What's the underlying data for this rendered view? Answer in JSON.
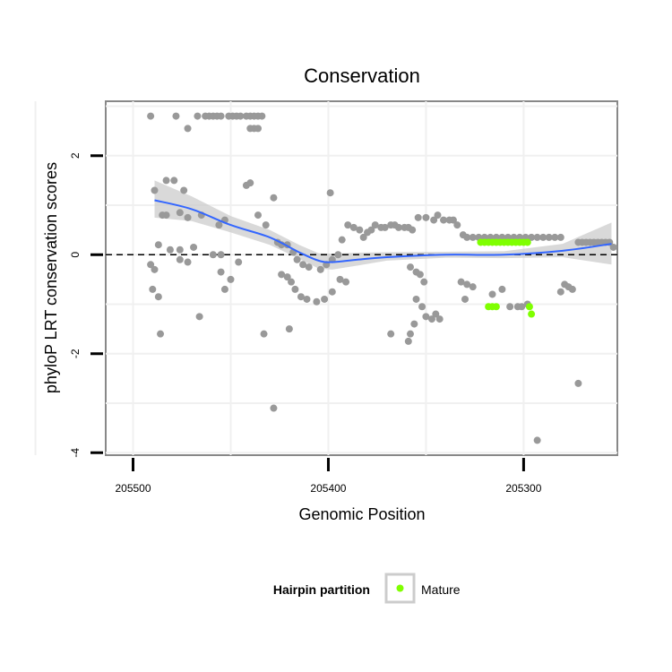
{
  "chart_data": {
    "type": "scatter",
    "title": "Conservation",
    "xlabel": "Genomic Position",
    "ylabel": "phyloP LRT conservation scores",
    "x_reversed": true,
    "xlim": [
      205252,
      205514
    ],
    "ylim": [
      -4.05,
      3.1
    ],
    "x_ticks": [
      205500,
      205400,
      205300
    ],
    "y_ticks": [
      2,
      0,
      -2,
      -4
    ],
    "reference_line_y": 0,
    "grid": true,
    "legend": {
      "title": "Hairpin partition",
      "placement": "bottom",
      "entries": [
        {
          "label": "Mature",
          "color": "#7fff00"
        }
      ]
    },
    "colors": {
      "points": "#999999",
      "mature": "#7fff00",
      "smooth": "#3366ff",
      "ribbon": "#cccccc"
    },
    "series": [
      {
        "role": "other",
        "points": [
          [
            205491,
            2.8
          ],
          [
            205478,
            2.8
          ],
          [
            205467,
            2.8
          ],
          [
            205463,
            2.8
          ],
          [
            205461,
            2.8
          ],
          [
            205459,
            2.8
          ],
          [
            205457,
            2.8
          ],
          [
            205455,
            2.8
          ],
          [
            205451,
            2.8
          ],
          [
            205449,
            2.8
          ],
          [
            205447,
            2.8
          ],
          [
            205445,
            2.8
          ],
          [
            205442,
            2.8
          ],
          [
            205440,
            2.8
          ],
          [
            205438,
            2.8
          ],
          [
            205436,
            2.8
          ],
          [
            205434,
            2.8
          ],
          [
            205472,
            2.55
          ],
          [
            205440,
            2.55
          ],
          [
            205438,
            2.55
          ],
          [
            205436,
            2.55
          ],
          [
            205489,
            1.3
          ],
          [
            205483,
            1.5
          ],
          [
            205479,
            1.5
          ],
          [
            205474,
            1.3
          ],
          [
            205440,
            1.45
          ],
          [
            205442,
            1.4
          ],
          [
            205428,
            1.15
          ],
          [
            205399,
            1.25
          ],
          [
            205485,
            0.8
          ],
          [
            205483,
            0.8
          ],
          [
            205476,
            0.85
          ],
          [
            205472,
            0.75
          ],
          [
            205465,
            0.8
          ],
          [
            205456,
            0.6
          ],
          [
            205453,
            0.7
          ],
          [
            205436,
            0.8
          ],
          [
            205432,
            0.6
          ],
          [
            205487,
            0.2
          ],
          [
            205481,
            0.1
          ],
          [
            205476,
            0.1
          ],
          [
            205469,
            0.15
          ],
          [
            205459,
            0.0
          ],
          [
            205455,
            0.0
          ],
          [
            205491,
            -0.2
          ],
          [
            205489,
            -0.3
          ],
          [
            205476,
            -0.1
          ],
          [
            205472,
            -0.15
          ],
          [
            205455,
            -0.35
          ],
          [
            205450,
            -0.5
          ],
          [
            205446,
            -0.15
          ],
          [
            205490,
            -0.7
          ],
          [
            205487,
            -0.85
          ],
          [
            205453,
            -0.7
          ],
          [
            205466,
            -1.25
          ],
          [
            205486,
            -1.6
          ],
          [
            205426,
            0.25
          ],
          [
            205424,
            0.2
          ],
          [
            205421,
            0.2
          ],
          [
            205418,
            0.05
          ],
          [
            205416,
            -0.1
          ],
          [
            205413,
            -0.2
          ],
          [
            205410,
            -0.25
          ],
          [
            205404,
            -0.3
          ],
          [
            205401,
            -0.2
          ],
          [
            205398,
            -0.1
          ],
          [
            205395,
            0.0
          ],
          [
            205393,
            0.3
          ],
          [
            205390,
            0.6
          ],
          [
            205387,
            0.55
          ],
          [
            205384,
            0.5
          ],
          [
            205382,
            0.35
          ],
          [
            205380,
            0.45
          ],
          [
            205378,
            0.5
          ],
          [
            205376,
            0.6
          ],
          [
            205373,
            0.55
          ],
          [
            205371,
            0.55
          ],
          [
            205368,
            0.6
          ],
          [
            205366,
            0.6
          ],
          [
            205364,
            0.55
          ],
          [
            205361,
            0.55
          ],
          [
            205359,
            0.55
          ],
          [
            205357,
            0.5
          ],
          [
            205424,
            -0.4
          ],
          [
            205421,
            -0.45
          ],
          [
            205419,
            -0.55
          ],
          [
            205417,
            -0.7
          ],
          [
            205414,
            -0.85
          ],
          [
            205411,
            -0.9
          ],
          [
            205406,
            -0.95
          ],
          [
            205402,
            -0.9
          ],
          [
            205398,
            -0.75
          ],
          [
            205394,
            -0.5
          ],
          [
            205391,
            -0.55
          ],
          [
            205433,
            -1.6
          ],
          [
            205420,
            -1.5
          ],
          [
            205428,
            -3.1
          ],
          [
            205354,
            0.75
          ],
          [
            205350,
            0.75
          ],
          [
            205346,
            0.7
          ],
          [
            205344,
            0.8
          ],
          [
            205341,
            0.7
          ],
          [
            205338,
            0.7
          ],
          [
            205336,
            0.7
          ],
          [
            205334,
            0.6
          ],
          [
            205331,
            0.4
          ],
          [
            205329,
            0.35
          ],
          [
            205326,
            0.35
          ],
          [
            205323,
            0.35
          ],
          [
            205320,
            0.35
          ],
          [
            205317,
            0.35
          ],
          [
            205314,
            0.35
          ],
          [
            205311,
            0.35
          ],
          [
            205308,
            0.35
          ],
          [
            205305,
            0.35
          ],
          [
            205302,
            0.35
          ],
          [
            205299,
            0.35
          ],
          [
            205296,
            0.35
          ],
          [
            205293,
            0.35
          ],
          [
            205290,
            0.35
          ],
          [
            205287,
            0.35
          ],
          [
            205284,
            0.35
          ],
          [
            205281,
            0.35
          ],
          [
            205355,
            -0.35
          ],
          [
            205353,
            -0.4
          ],
          [
            205351,
            -0.55
          ],
          [
            205358,
            -0.25
          ],
          [
            205355,
            -0.9
          ],
          [
            205352,
            -1.05
          ],
          [
            205350,
            -1.25
          ],
          [
            205347,
            -1.3
          ],
          [
            205345,
            -1.2
          ],
          [
            205356,
            -1.4
          ],
          [
            205343,
            -1.3
          ],
          [
            205358,
            -1.6
          ],
          [
            205359,
            -1.75
          ],
          [
            205368,
            -1.6
          ],
          [
            205332,
            -0.55
          ],
          [
            205329,
            -0.6
          ],
          [
            205326,
            -0.65
          ],
          [
            205316,
            -0.8
          ],
          [
            205311,
            -0.7
          ],
          [
            205330,
            -0.9
          ],
          [
            205281,
            -0.75
          ],
          [
            205279,
            -0.6
          ],
          [
            205277,
            -0.65
          ],
          [
            205275,
            -0.7
          ],
          [
            205272,
            -2.6
          ],
          [
            205293,
            -3.75
          ],
          [
            205272,
            0.25
          ],
          [
            205270,
            0.25
          ],
          [
            205268,
            0.25
          ],
          [
            205266,
            0.25
          ],
          [
            205264,
            0.25
          ],
          [
            205262,
            0.25
          ],
          [
            205260,
            0.25
          ],
          [
            205258,
            0.25
          ],
          [
            205256,
            0.25
          ],
          [
            205254,
            0.15
          ],
          [
            205298,
            -1.0
          ],
          [
            205303,
            -1.05
          ],
          [
            205307,
            -1.05
          ],
          [
            205301,
            -1.05
          ]
        ]
      },
      {
        "role": "mature",
        "name": "Mature",
        "points": [
          [
            205322,
            0.25
          ],
          [
            205320,
            0.25
          ],
          [
            205318,
            0.25
          ],
          [
            205316,
            0.25
          ],
          [
            205314,
            0.25
          ],
          [
            205312,
            0.25
          ],
          [
            205310,
            0.25
          ],
          [
            205308,
            0.25
          ],
          [
            205306,
            0.25
          ],
          [
            205304,
            0.25
          ],
          [
            205302,
            0.25
          ],
          [
            205300,
            0.25
          ],
          [
            205298,
            0.25
          ],
          [
            205318,
            -1.05
          ],
          [
            205316,
            -1.05
          ],
          [
            205314,
            -1.05
          ],
          [
            205297,
            -1.05
          ],
          [
            205296,
            -1.2
          ]
        ]
      }
    ],
    "smooth": {
      "x": [
        205489,
        205470,
        205450,
        205430,
        205415,
        205405,
        205398,
        205385,
        205370,
        205340,
        205310,
        205280,
        205255
      ],
      "y": [
        1.1,
        0.92,
        0.6,
        0.35,
        0.05,
        -0.12,
        -0.15,
        -0.1,
        -0.05,
        0.0,
        0.0,
        0.08,
        0.22
      ],
      "lower": [
        0.75,
        0.68,
        0.45,
        0.2,
        -0.08,
        -0.28,
        -0.3,
        -0.22,
        -0.12,
        -0.06,
        -0.07,
        -0.05,
        -0.2
      ],
      "upper": [
        1.5,
        1.18,
        0.78,
        0.5,
        0.2,
        0.03,
        0.02,
        0.04,
        0.05,
        0.06,
        0.07,
        0.22,
        0.65
      ]
    }
  }
}
